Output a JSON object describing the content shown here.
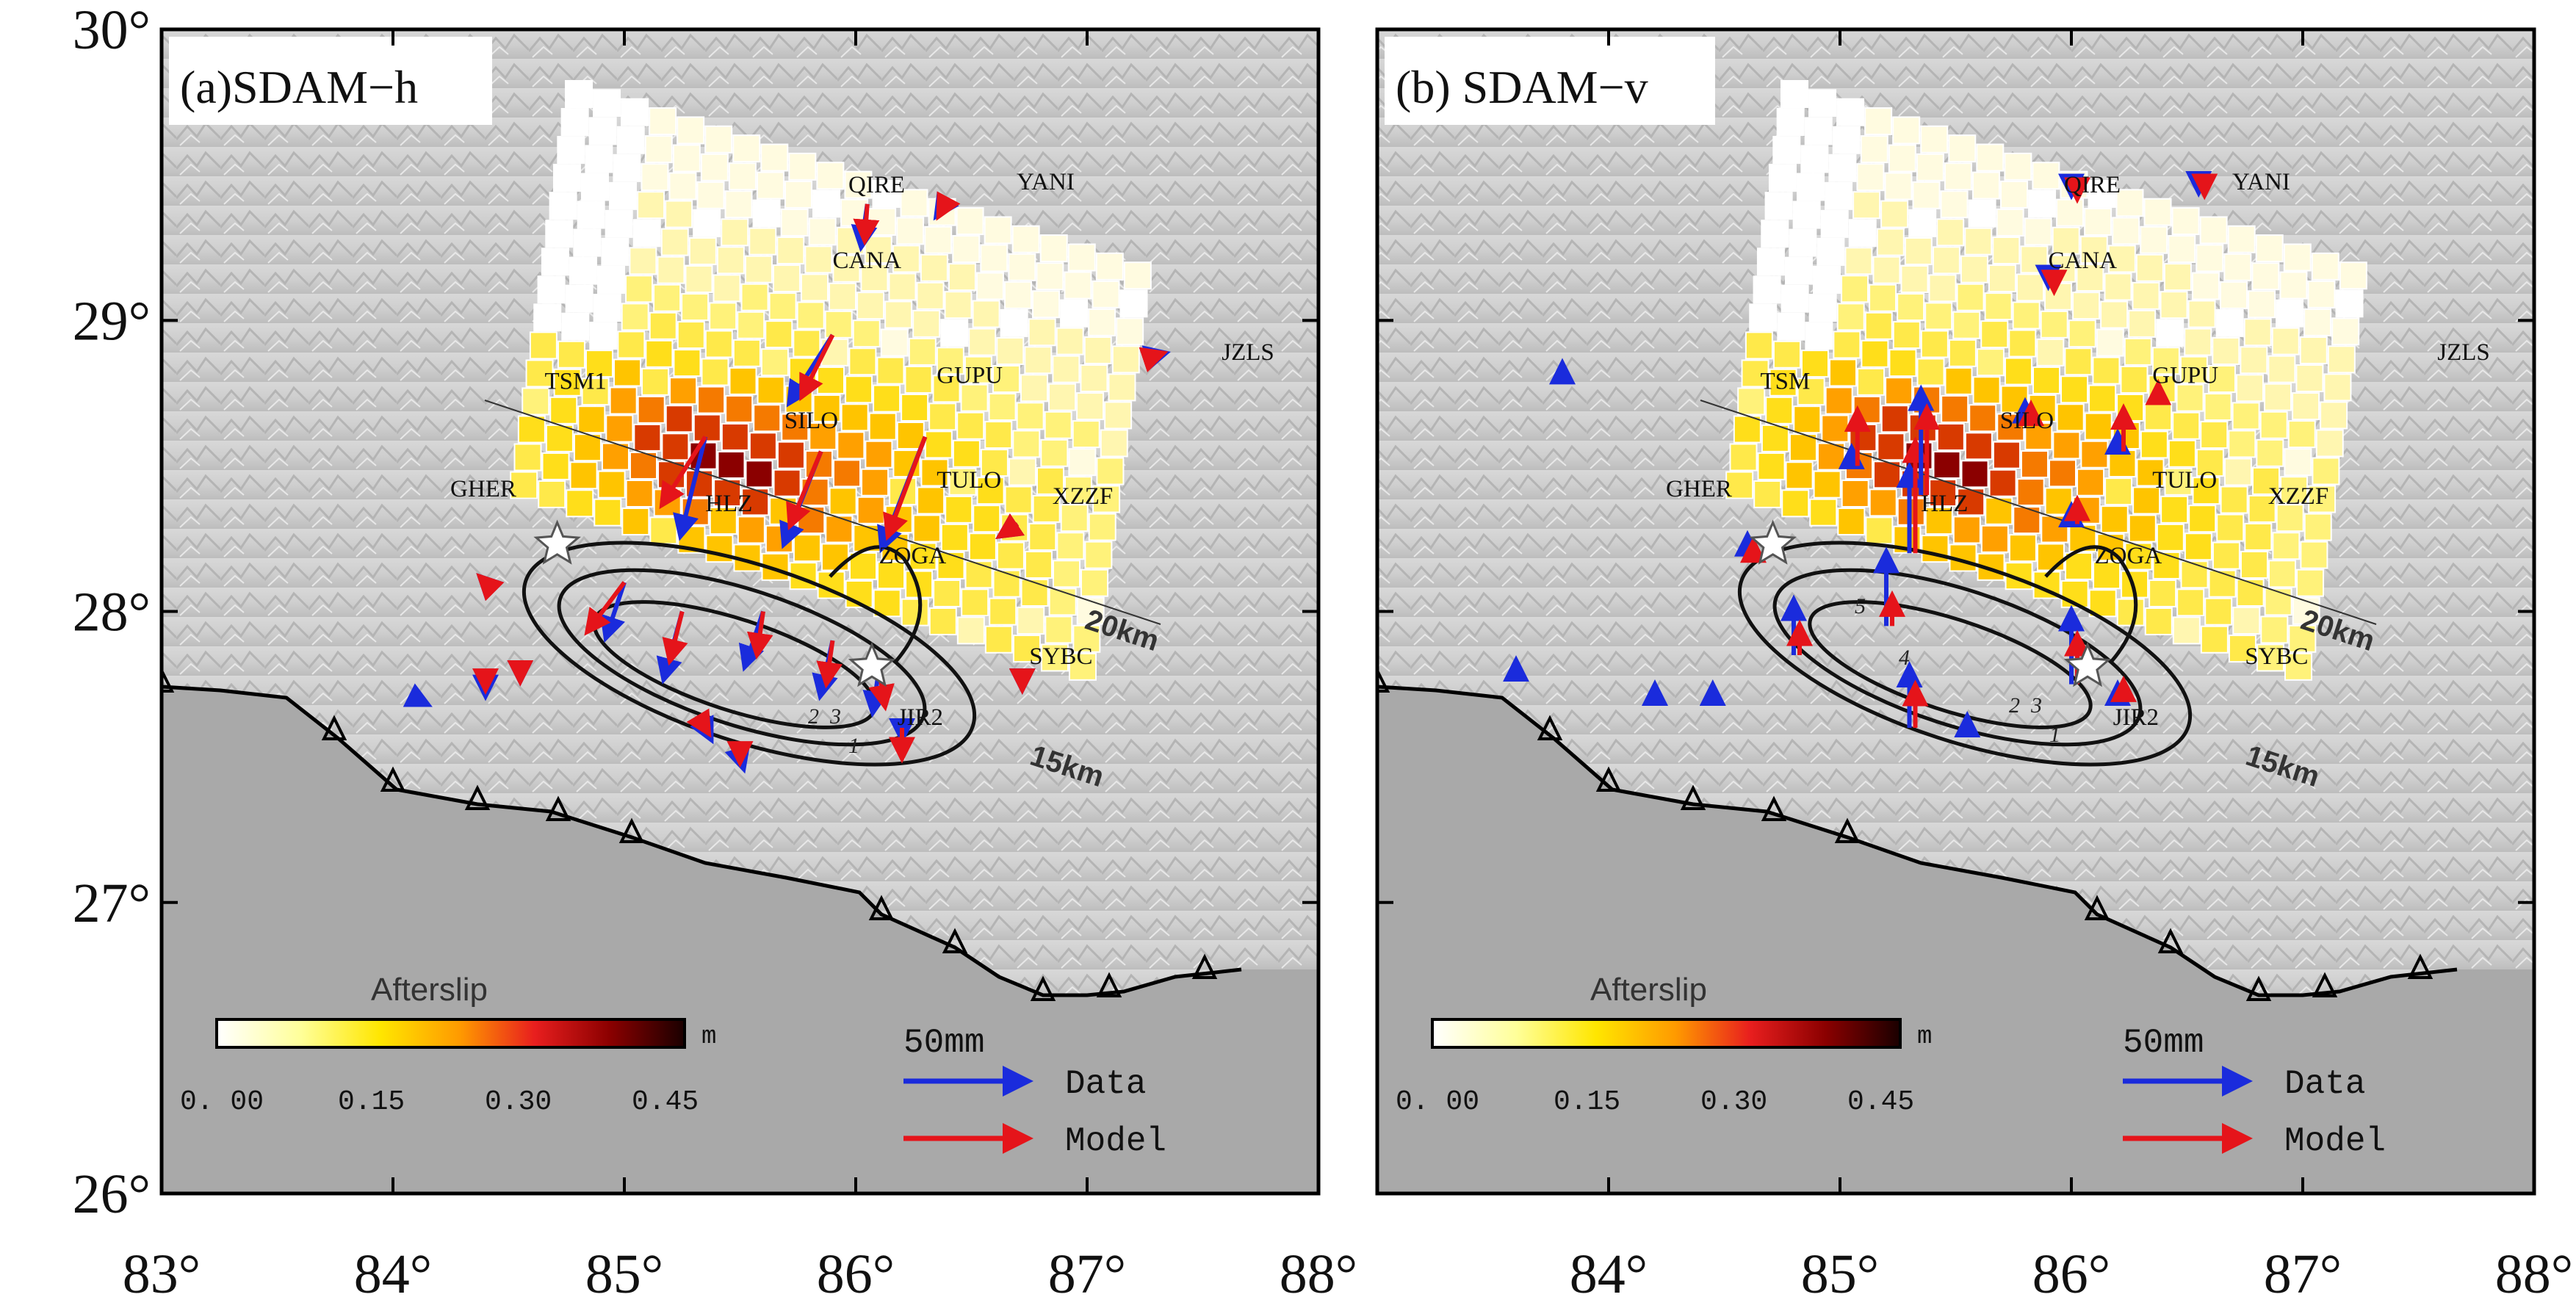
{
  "axes": {
    "x_ticks": [
      "83°",
      "84°",
      "85°",
      "86°",
      "87°",
      "88°"
    ],
    "y_ticks": [
      "30°",
      "29°",
      "28°",
      "27°",
      "26°"
    ],
    "lon_range": [
      83,
      88
    ],
    "lat_range": [
      26,
      30
    ]
  },
  "panels": [
    {
      "id": "a",
      "title": "(a)SDAM−h",
      "stations": [
        {
          "name": "QIRE",
          "lon": 86.0,
          "lat": 29.41
        },
        {
          "name": "YANI",
          "lon": 86.6,
          "lat": 29.42
        },
        {
          "name": "CANA",
          "lon": 85.9,
          "lat": 29.16
        },
        {
          "name": "JZLS",
          "lon": 87.55,
          "lat": 28.89
        },
        {
          "name": "TSM1",
          "lon": 85.1,
          "lat": 28.74
        },
        {
          "name": "GUPU",
          "lon": 86.35,
          "lat": 28.76
        },
        {
          "name": "SILO",
          "lon": 85.85,
          "lat": 28.63
        },
        {
          "name": "TULO",
          "lon": 86.35,
          "lat": 28.45
        },
        {
          "name": "GHER",
          "lon": 84.47,
          "lat": 28.37
        },
        {
          "name": "HLZ",
          "lon": 85.35,
          "lat": 28.37
        },
        {
          "name": "XZZF",
          "lon": 86.85,
          "lat": 28.37
        },
        {
          "name": "ZOGA",
          "lon": 86.1,
          "lat": 28.19
        },
        {
          "name": "SYBC",
          "lon": 86.75,
          "lat": 27.82
        },
        {
          "name": "JIR2",
          "lon": 86.18,
          "lat": 27.66
        }
      ],
      "depth_labels": [
        "20km",
        "15km"
      ],
      "contour_labels": [
        "1",
        "2",
        "3"
      ],
      "colorbar": {
        "title": "Afterslip",
        "unit": "m",
        "ticks": [
          "0. 00",
          "0.15",
          "0.30",
          "0.45"
        ]
      },
      "legend": {
        "scale": "50mm",
        "data_label": "Data",
        "model_label": "Model"
      }
    },
    {
      "id": "b",
      "title": "(b) SDAM−v",
      "stations": [
        {
          "name": "QIRE",
          "lon": 86.0,
          "lat": 29.41
        },
        {
          "name": "YANI",
          "lon": 86.6,
          "lat": 29.42
        },
        {
          "name": "CANA",
          "lon": 85.9,
          "lat": 29.16
        },
        {
          "name": "JZLS",
          "lon": 87.55,
          "lat": 28.89
        },
        {
          "name": "TSM",
          "lon": 85.1,
          "lat": 28.74
        },
        {
          "name": "GUPU",
          "lon": 86.35,
          "lat": 28.76
        },
        {
          "name": "SILO",
          "lon": 85.85,
          "lat": 28.63
        },
        {
          "name": "TULO",
          "lon": 86.35,
          "lat": 28.45
        },
        {
          "name": "GHER",
          "lon": 84.47,
          "lat": 28.37
        },
        {
          "name": "HLZ",
          "lon": 85.35,
          "lat": 28.37
        },
        {
          "name": "XZZF",
          "lon": 86.85,
          "lat": 28.37
        },
        {
          "name": "ZOGA",
          "lon": 86.1,
          "lat": 28.19
        },
        {
          "name": "SYBC",
          "lon": 86.75,
          "lat": 27.82
        },
        {
          "name": "JIR2",
          "lon": 86.18,
          "lat": 27.66
        }
      ],
      "depth_labels": [
        "20km",
        "15km"
      ],
      "contour_labels": [
        "1",
        "2",
        "3",
        "4",
        "5"
      ],
      "colorbar": {
        "title": "Afterslip",
        "unit": "m",
        "ticks": [
          "0. 00",
          "0.15",
          "0.30",
          "0.45"
        ]
      },
      "legend": {
        "scale": "50mm",
        "data_label": "Data",
        "model_label": "Model"
      }
    }
  ],
  "colors": {
    "data": "#1a2bdc",
    "model": "#e5141a",
    "ocean": "#a9a9a9",
    "frame": "#000000"
  },
  "vectors_h": [
    {
      "lon": 85.9,
      "lat": 28.95,
      "d": [
        -0.35,
        -0.55
      ],
      "m": [
        -0.25,
        -0.5
      ]
    },
    {
      "lon": 86.05,
      "lat": 29.4,
      "d": [
        -0.05,
        -0.35
      ],
      "m": [
        -0.02,
        -0.3
      ]
    },
    {
      "lon": 86.4,
      "lat": 29.42,
      "d": [
        -0.1,
        -0.15
      ],
      "m": [
        -0.08,
        -0.15
      ]
    },
    {
      "lon": 85.35,
      "lat": 28.6,
      "d": [
        -0.2,
        -0.8
      ],
      "m": [
        -0.35,
        -0.55
      ]
    },
    {
      "lon": 85.85,
      "lat": 28.55,
      "d": [
        -0.3,
        -0.75
      ],
      "m": [
        -0.25,
        -0.6
      ]
    },
    {
      "lon": 86.3,
      "lat": 28.6,
      "d": [
        -0.35,
        -0.9
      ],
      "m": [
        -0.3,
        -0.8
      ]
    },
    {
      "lon": 85.0,
      "lat": 28.1,
      "d": [
        -0.15,
        -0.45
      ],
      "m": [
        -0.3,
        -0.4
      ]
    },
    {
      "lon": 85.25,
      "lat": 28.0,
      "d": [
        -0.15,
        -0.55
      ],
      "m": [
        -0.1,
        -0.4
      ]
    },
    {
      "lon": 85.6,
      "lat": 28.0,
      "d": [
        -0.15,
        -0.45
      ],
      "m": [
        -0.05,
        -0.35
      ]
    },
    {
      "lon": 85.9,
      "lat": 27.9,
      "d": [
        -0.1,
        -0.45
      ],
      "m": [
        -0.05,
        -0.35
      ]
    },
    {
      "lon": 86.1,
      "lat": 27.8,
      "d": [
        -0.05,
        -0.35
      ],
      "m": [
        0.05,
        -0.3
      ]
    },
    {
      "lon": 86.2,
      "lat": 27.6,
      "d": [
        0.0,
        -0.1
      ],
      "m": [
        0.0,
        -0.25
      ]
    },
    {
      "lon": 84.4,
      "lat": 28.1,
      "d": [
        -0.05,
        0.05
      ],
      "m": [
        -0.05,
        0.05
      ]
    },
    {
      "lon": 84.55,
      "lat": 27.8,
      "d": [
        0.0,
        -0.1
      ],
      "m": [
        0.0,
        -0.1
      ]
    },
    {
      "lon": 84.4,
      "lat": 27.75,
      "d": [
        0.0,
        -0.1
      ],
      "m": [
        0.0,
        -0.05
      ]
    },
    {
      "lon": 87.3,
      "lat": 28.88,
      "d": [
        0.08,
        0.02
      ],
      "m": [
        0.06,
        0.02
      ]
    },
    {
      "lon": 86.7,
      "lat": 28.3,
      "d": [
        -0.15,
        -0.1
      ],
      "m": [
        -0.15,
        -0.1
      ]
    },
    {
      "lon": 86.72,
      "lat": 27.75,
      "d": [
        0.0,
        -0.05
      ],
      "m": [
        0.0,
        -0.05
      ]
    },
    {
      "lon": 84.1,
      "lat": 27.7,
      "d": [
        0.1,
        -0.05
      ],
      "m": [
        0.0,
        0.0
      ]
    },
    {
      "lon": 85.35,
      "lat": 27.6,
      "d": [
        0.05,
        -0.1
      ],
      "m": [
        0.03,
        -0.05
      ]
    },
    {
      "lon": 85.5,
      "lat": 27.5,
      "d": [
        0.03,
        -0.1
      ],
      "m": [
        0.0,
        -0.05
      ]
    }
  ],
  "vectors_v": [
    {
      "lon": 85.3,
      "lat": 28.2,
      "d": [
        0.0,
        0.7
      ],
      "m": [
        0.0,
        0.9
      ]
    },
    {
      "lon": 85.35,
      "lat": 28.4,
      "d": [
        0.0,
        0.85
      ],
      "m": [
        0.0,
        0.7
      ]
    },
    {
      "lon": 85.05,
      "lat": 28.5,
      "d": [
        0.0,
        0.15
      ],
      "m": [
        0.0,
        0.45
      ]
    },
    {
      "lon": 86.0,
      "lat": 28.3,
      "d": [
        0.0,
        0.15
      ],
      "m": [
        0.0,
        0.2
      ]
    },
    {
      "lon": 86.2,
      "lat": 28.55,
      "d": [
        0.0,
        0.15
      ],
      "m": [
        0.0,
        0.35
      ]
    },
    {
      "lon": 85.3,
      "lat": 27.6,
      "d": [
        0.0,
        0.5
      ],
      "m": [
        0.0,
        0.35
      ]
    },
    {
      "lon": 85.2,
      "lat": 27.95,
      "d": [
        0.0,
        0.6
      ],
      "m": [
        0.0,
        0.25
      ]
    },
    {
      "lon": 86.0,
      "lat": 27.75,
      "d": [
        0.0,
        0.6
      ],
      "m": [
        0.0,
        0.4
      ]
    },
    {
      "lon": 84.8,
      "lat": 27.85,
      "d": [
        0.0,
        0.45
      ],
      "m": [
        0.0,
        0.25
      ]
    },
    {
      "lon": 84.6,
      "lat": 28.2,
      "d": [
        0.0,
        0.15
      ],
      "m": [
        0.0,
        0.1
      ]
    },
    {
      "lon": 84.2,
      "lat": 27.7,
      "d": [
        0.0,
        0.12
      ],
      "m": [
        0.0,
        0.0
      ]
    },
    {
      "lon": 84.45,
      "lat": 27.7,
      "d": [
        0.0,
        0.12
      ],
      "m": [
        0.0,
        0.0
      ]
    },
    {
      "lon": 83.6,
      "lat": 27.8,
      "d": [
        0.0,
        0.08
      ],
      "m": [
        0.0,
        0.0
      ]
    },
    {
      "lon": 85.55,
      "lat": 27.6,
      "d": [
        0.0,
        0.1
      ],
      "m": [
        0.0,
        0.0
      ]
    },
    {
      "lon": 86.2,
      "lat": 27.7,
      "d": [
        0.0,
        0.12
      ],
      "m": [
        0.0,
        0.15
      ]
    },
    {
      "lon": 86.0,
      "lat": 29.45,
      "d": [
        0.0,
        -0.05
      ],
      "m": [
        0.0,
        -0.08
      ]
    },
    {
      "lon": 86.55,
      "lat": 29.45,
      "d": [
        0.0,
        -0.03
      ],
      "m": [
        0.0,
        -0.05
      ]
    },
    {
      "lon": 85.9,
      "lat": 29.15,
      "d": [
        0.0,
        -0.08
      ],
      "m": [
        0.0,
        -0.12
      ]
    },
    {
      "lon": 86.35,
      "lat": 28.75,
      "d": [
        0.0,
        0.0
      ],
      "m": [
        0.0,
        0.08
      ]
    },
    {
      "lon": 85.8,
      "lat": 28.7,
      "d": [
        0.0,
        0.05
      ],
      "m": [
        0.0,
        0.03
      ]
    },
    {
      "lon": 83.8,
      "lat": 28.83,
      "d": [
        0.0,
        0.06
      ],
      "m": [
        0.0,
        0.0
      ]
    }
  ]
}
